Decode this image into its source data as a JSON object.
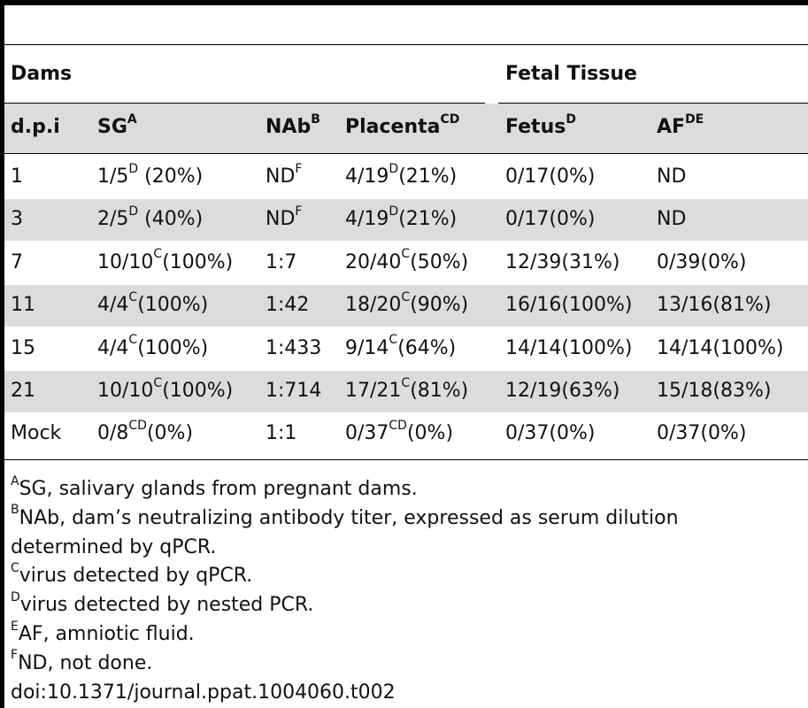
{
  "group_headers": {
    "dams": "Dams",
    "fetal": "Fetal Tissue"
  },
  "columns": [
    {
      "label": "d.p.i",
      "sup": ""
    },
    {
      "label": "SG",
      "sup": "A"
    },
    {
      "label": "NAb",
      "sup": "B"
    },
    {
      "label": "Placenta",
      "sup": "CD"
    },
    {
      "label": "Fetus",
      "sup": "D"
    },
    {
      "label": "AF",
      "sup": "DE"
    }
  ],
  "rows": [
    {
      "dpi": "1",
      "sg": "1/5",
      "sg_sup": "D",
      "sg_pct": " (20%)",
      "nab": "ND",
      "nab_sup": "F",
      "pl": "4/19",
      "pl_sup": "D",
      "pl_pct": "(21%)",
      "fetus": "0/17(0%)",
      "af": "ND"
    },
    {
      "dpi": "3",
      "sg": "2/5",
      "sg_sup": "D",
      "sg_pct": " (40%)",
      "nab": "ND",
      "nab_sup": "F",
      "pl": "4/19",
      "pl_sup": "D",
      "pl_pct": "(21%)",
      "fetus": "0/17(0%)",
      "af": "ND"
    },
    {
      "dpi": "7",
      "sg": "10/10",
      "sg_sup": "C",
      "sg_pct": "(100%)",
      "nab": "1:7",
      "nab_sup": "",
      "pl": "20/40",
      "pl_sup": "C",
      "pl_pct": "(50%)",
      "fetus": "12/39(31%)",
      "af": "0/39(0%)"
    },
    {
      "dpi": "11",
      "sg": "4/4",
      "sg_sup": "C",
      "sg_pct": "(100%)",
      "nab": "1:42",
      "nab_sup": "",
      "pl": "18/20",
      "pl_sup": "C",
      "pl_pct": "(90%)",
      "fetus": "16/16(100%)",
      "af": "13/16(81%)"
    },
    {
      "dpi": "15",
      "sg": "4/4",
      "sg_sup": "C",
      "sg_pct": "(100%)",
      "nab": "1:433",
      "nab_sup": "",
      "pl": "9/14",
      "pl_sup": "C",
      "pl_pct": "(64%)",
      "fetus": "14/14(100%)",
      "af": "14/14(100%)"
    },
    {
      "dpi": "21",
      "sg": "10/10",
      "sg_sup": "C",
      "sg_pct": "(100%)",
      "nab": "1:714",
      "nab_sup": "",
      "pl": "17/21",
      "pl_sup": "C",
      "pl_pct": "(81%)",
      "fetus": "12/19(63%)",
      "af": "15/18(83%)"
    },
    {
      "dpi": "Mock",
      "sg": "0/8",
      "sg_sup": "CD",
      "sg_pct": "(0%)",
      "nab": "1:1",
      "nab_sup": "",
      "pl": "0/37",
      "pl_sup": "CD",
      "pl_pct": "(0%)",
      "fetus": "0/37(0%)",
      "af": "0/37(0%)"
    }
  ],
  "footnotes": [
    {
      "sup": "A",
      "text": "SG, salivary glands from pregnant dams."
    },
    {
      "sup": "B",
      "text": "NAb, dam’s neutralizing antibody titer, expressed as serum dilution"
    },
    {
      "sup": "",
      "text": "determined by qPCR."
    },
    {
      "sup": "C",
      "text": "virus detected by qPCR."
    },
    {
      "sup": "D",
      "text": "virus detected by nested PCR."
    },
    {
      "sup": "E",
      "text": "AF, amniotic fluid."
    },
    {
      "sup": "F",
      "text": "ND, not done."
    }
  ],
  "doi": "doi:10.1371/journal.ppat.1004060.t002",
  "colors": {
    "band": "#dcdcdc",
    "rule": "#000000"
  }
}
